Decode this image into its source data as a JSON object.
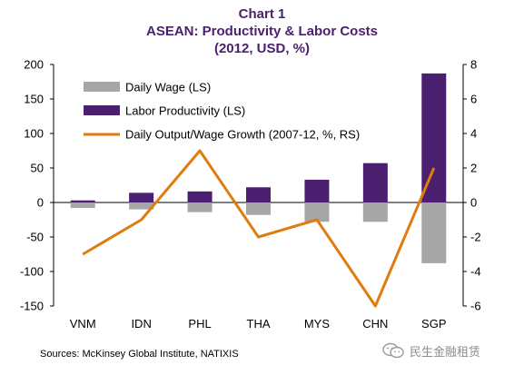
{
  "chart_data": {
    "type": "bar",
    "title": "Chart 1",
    "subtitle": "ASEAN:  Productivity & Labor Costs",
    "subtitle2": "(2012,  USD, %)",
    "categories": [
      "VNM",
      "IDN",
      "PHL",
      "THA",
      "MYS",
      "CHN",
      "SGP"
    ],
    "series": [
      {
        "name": "Daily Wage (LS)",
        "kind": "bar",
        "axis": "left",
        "color": "#a6a6a6",
        "values": [
          -8,
          -10,
          -14,
          -18,
          -28,
          -28,
          -88
        ]
      },
      {
        "name": "Labor Productivity (LS)",
        "kind": "bar",
        "axis": "left",
        "color": "#4b1f6f",
        "values": [
          3,
          14,
          16,
          22,
          33,
          57,
          187
        ]
      },
      {
        "name": "Daily Output/Wage Growth (2007-12, %, RS)",
        "kind": "line",
        "axis": "right",
        "color": "#e07b10",
        "values": [
          -3,
          -1,
          3,
          -2,
          -1,
          -6,
          2
        ]
      }
    ],
    "left_axis": {
      "ylim": [
        -150,
        200
      ],
      "ticks": [
        200,
        150,
        100,
        50,
        0,
        -50,
        -100,
        -150
      ]
    },
    "right_axis": {
      "ylim": [
        -6,
        8
      ],
      "ticks": [
        8,
        6,
        4,
        2,
        0,
        -2,
        -4,
        -6
      ]
    },
    "grid": false,
    "legend_position": "top-left"
  },
  "source_text": "Sources: McKinsey Global Institute, NATIXIS",
  "watermark": {
    "text": "民生金融租赁",
    "icon": "wechat-logo"
  }
}
